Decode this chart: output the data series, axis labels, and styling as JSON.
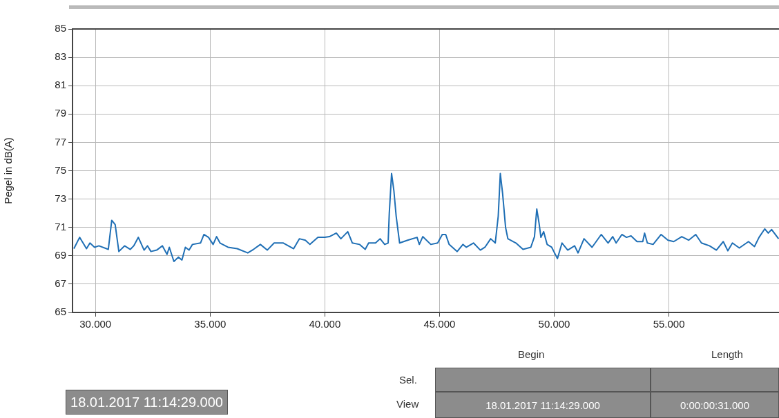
{
  "chart_data": {
    "type": "line",
    "ylabel": "Pegel in dB(A)",
    "x": [
      29.06,
      29.31,
      29.61,
      29.76,
      29.96,
      30.15,
      30.56,
      30.71,
      30.86,
      31.02,
      31.27,
      31.52,
      31.67,
      31.87,
      32.12,
      32.27,
      32.42,
      32.67,
      32.92,
      33.12,
      33.22,
      33.42,
      33.62,
      33.77,
      33.92,
      34.08,
      34.23,
      34.58,
      34.73,
      34.93,
      35.13,
      35.28,
      35.43,
      35.78,
      36.18,
      36.64,
      36.89,
      37.19,
      37.49,
      37.79,
      38.19,
      38.64,
      38.89,
      39.15,
      39.35,
      39.7,
      40.0,
      40.2,
      40.5,
      40.7,
      41.0,
      41.2,
      41.51,
      41.76,
      41.91,
      42.21,
      42.41,
      42.61,
      42.76,
      42.81,
      42.91,
      43.01,
      43.11,
      43.26,
      43.61,
      44.02,
      44.12,
      44.27,
      44.62,
      44.92,
      45.12,
      45.27,
      45.42,
      45.77,
      46.02,
      46.17,
      46.48,
      46.78,
      46.98,
      47.23,
      47.43,
      47.56,
      47.65,
      47.75,
      47.88,
      47.98,
      48.33,
      48.64,
      48.98,
      49.14,
      49.24,
      49.34,
      49.42,
      49.54,
      49.69,
      49.89,
      50.14,
      50.34,
      50.59,
      50.89,
      51.04,
      51.3,
      51.65,
      52.05,
      52.35,
      52.55,
      52.7,
      52.95,
      53.15,
      53.35,
      53.61,
      53.86,
      53.94,
      54.06,
      54.31,
      54.66,
      54.96,
      55.21,
      55.56,
      55.86,
      56.17,
      56.42,
      56.77,
      57.07,
      57.37,
      57.57,
      57.77,
      58.07,
      58.47,
      58.73,
      58.93,
      59.18,
      59.33,
      59.48,
      59.78
    ],
    "series": [
      {
        "color": "#1f6fb5",
        "values": [
          69.5,
          70.3,
          69.5,
          69.9,
          69.6,
          69.7,
          69.45,
          71.5,
          71.2,
          69.3,
          69.7,
          69.45,
          69.7,
          70.3,
          69.4,
          69.7,
          69.3,
          69.4,
          69.7,
          69.1,
          69.6,
          68.6,
          68.9,
          68.7,
          69.6,
          69.4,
          69.8,
          69.9,
          70.5,
          70.3,
          69.8,
          70.35,
          69.9,
          69.6,
          69.5,
          69.2,
          69.45,
          69.8,
          69.4,
          69.9,
          69.9,
          69.5,
          70.2,
          70.1,
          69.8,
          70.3,
          70.3,
          70.35,
          70.6,
          70.2,
          70.7,
          69.9,
          69.8,
          69.45,
          69.9,
          69.9,
          70.2,
          69.8,
          69.9,
          72.0,
          74.8,
          73.6,
          71.8,
          69.9,
          70.1,
          70.3,
          69.8,
          70.35,
          69.8,
          69.9,
          70.5,
          70.5,
          69.8,
          69.3,
          69.8,
          69.6,
          69.9,
          69.4,
          69.6,
          70.2,
          69.9,
          71.8,
          74.8,
          73.4,
          71.0,
          70.2,
          69.9,
          69.45,
          69.6,
          70.35,
          72.3,
          71.3,
          70.3,
          70.7,
          69.8,
          69.6,
          68.8,
          69.9,
          69.4,
          69.7,
          69.2,
          70.2,
          69.6,
          70.5,
          69.9,
          70.35,
          69.9,
          70.5,
          70.3,
          70.4,
          70.0,
          70.0,
          70.6,
          69.9,
          69.8,
          70.5,
          70.1,
          70.0,
          70.35,
          70.1,
          70.5,
          69.9,
          69.7,
          69.4,
          70.0,
          69.35,
          69.9,
          69.55,
          70.0,
          69.65,
          70.3,
          70.9,
          70.6,
          70.85,
          70.2
        ]
      }
    ],
    "xlim": [
      29,
      59.8
    ],
    "xticks": [
      {
        "value": 30,
        "label": "30.000"
      },
      {
        "value": 35,
        "label": "35.000"
      },
      {
        "value": 40,
        "label": "40.000"
      },
      {
        "value": 45,
        "label": "45.000"
      },
      {
        "value": 50,
        "label": "50.000"
      },
      {
        "value": 55,
        "label": "55.000"
      }
    ],
    "ylim": [
      65,
      85
    ],
    "yticks": [
      65,
      67,
      69,
      71,
      73,
      75,
      77,
      79,
      81,
      83,
      85
    ],
    "grid": true,
    "legend": false,
    "marker": "none",
    "annotations": [
      "18.01.2017 11:14:29.000",
      "Begin",
      "Length",
      "Sel.",
      "View",
      "18.01.2017 11:14:29.000",
      "0:00:00:31.000"
    ]
  }
}
